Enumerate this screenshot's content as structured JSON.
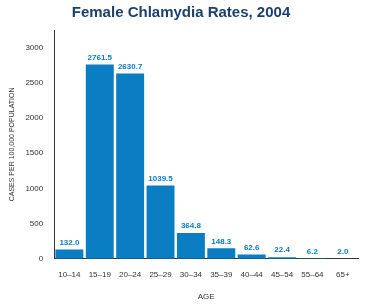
{
  "chart_data": {
    "type": "bar",
    "title": "Female Chlamydia Rates, 2004",
    "x_label": "AGE",
    "y_label": "CASES PER 100,000 POPULATION",
    "categories": [
      "10–14",
      "15–19",
      "20–24",
      "25–29",
      "30–34",
      "35–39",
      "40–44",
      "45–54",
      "55–64",
      "65+"
    ],
    "values": [
      132.0,
      2761.5,
      2630.7,
      1039.5,
      364.8,
      148.3,
      62.6,
      22.4,
      6.2,
      2.0
    ],
    "value_labels": [
      "132.0",
      "2761.5",
      "2630.7",
      "1039.5",
      "364.8",
      "148.3",
      "62.6",
      "22.4",
      "6.2",
      "2.0"
    ],
    "color": "#0b7dc3",
    "ylim": [
      0,
      3250
    ],
    "yticks": [
      0,
      500,
      1000,
      1500,
      2000,
      2500,
      3000
    ],
    "grid": false,
    "data_labels": true
  }
}
